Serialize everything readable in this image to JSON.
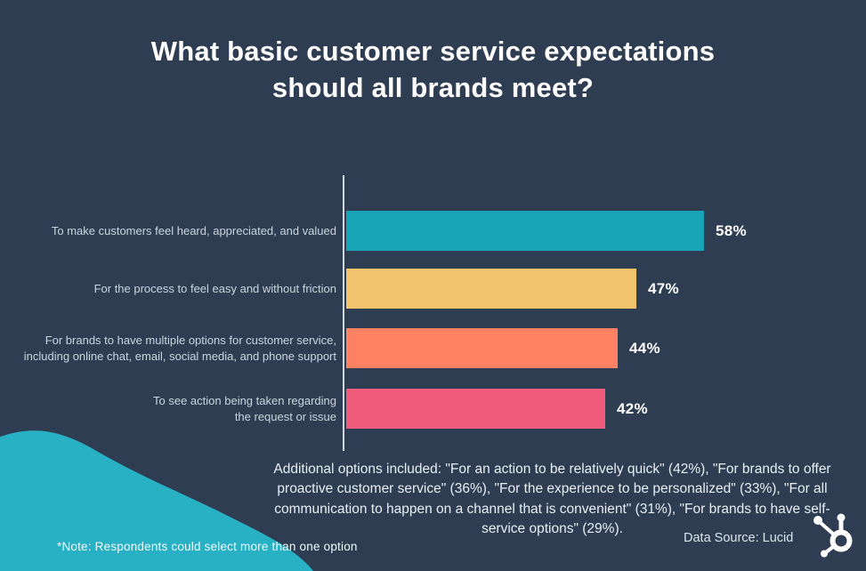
{
  "title": "What basic customer service expectations should all brands meet?",
  "colors": {
    "background": "#2e3d51",
    "bar_teal": "#18a3b7",
    "bar_yellow": "#f0c36c",
    "bar_orange": "#fd8264",
    "bar_pink": "#f25c7c",
    "blob_teal": "#28b0c5",
    "axis": "#eef4f8",
    "category_text": "#ccd5de",
    "value_text": "#ffffff"
  },
  "chart_data": {
    "type": "bar",
    "orientation": "horizontal",
    "title": "What basic customer service expectations should all brands meet?",
    "categories": [
      "To make customers feel heard, appreciated, and valued",
      "For the process to feel easy and without friction",
      "For brands to have multiple  options for customer service, including online chat, email, social media, and phone support",
      "To see action being taken regarding the request or issue"
    ],
    "values": [
      58,
      47,
      44,
      42
    ],
    "value_labels": [
      "58%",
      "47%",
      "44%",
      "42%"
    ],
    "bar_colors": [
      "#18a3b7",
      "#f0c36c",
      "#fd8264",
      "#f25c7c"
    ],
    "xlim": [
      0,
      79
    ],
    "grid": false,
    "legend": null,
    "xlabel": "",
    "ylabel": ""
  },
  "footer": {
    "additional_text": "Additional options included: \"For an action to be relatively quick\" (42%), \"For brands to offer proactive customer service\" (36%), \"For the experience to be personalized\" (33%), \"For all communication to happen on a channel that is convenient\" (31%), \"For brands to have self-service options\" (29%).",
    "note": "*Note: Respondents could select more than one option",
    "data_source": "Data Source: Lucid",
    "logo": "hubspot-sprocket-icon"
  }
}
